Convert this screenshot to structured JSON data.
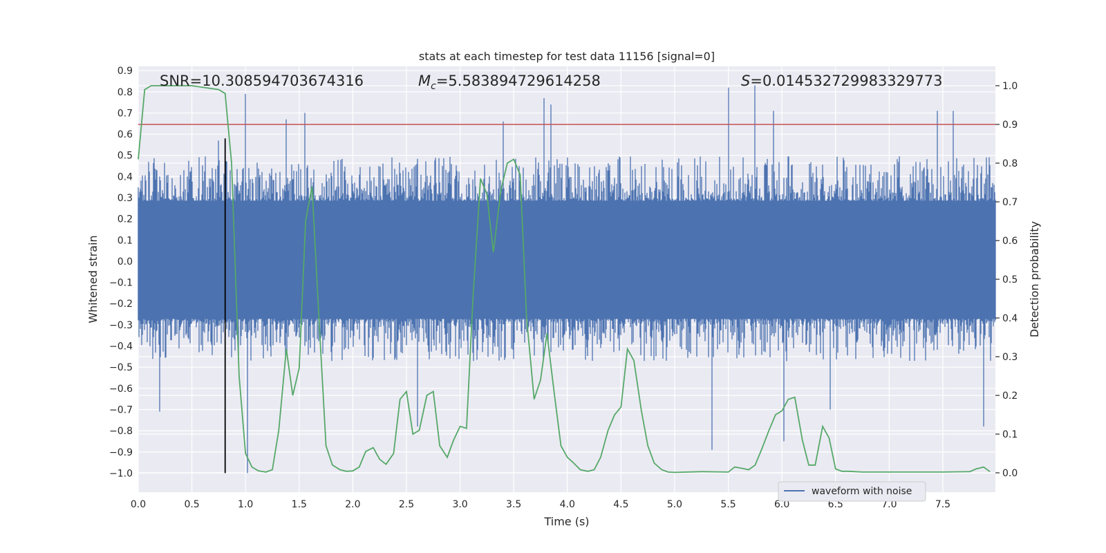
{
  "chart_data": {
    "type": "line",
    "title": "stats at each timestep for test data 11156 [signal=0]",
    "xlabel": "Time (s)",
    "ylabel_left": "Whitened strain",
    "ylabel_right": "Detection probability",
    "xlim": [
      0.0,
      7.99
    ],
    "ylim_left": [
      -1.09,
      0.92
    ],
    "ylim_right": [
      -0.05,
      1.05
    ],
    "x_ticks": [
      "0.0",
      "0.5",
      "1.0",
      "1.5",
      "2.0",
      "2.5",
      "3.0",
      "3.5",
      "4.0",
      "4.5",
      "5.0",
      "5.5",
      "6.0",
      "6.5",
      "7.0",
      "7.5"
    ],
    "y_left_ticks": [
      "0.9",
      "0.8",
      "0.7",
      "0.6",
      "0.5",
      "0.4",
      "0.3",
      "0.2",
      "0.1",
      "0.0",
      "−0.1",
      "−0.2",
      "−0.3",
      "−0.4",
      "−0.5",
      "−0.6",
      "−0.7",
      "−0.8",
      "−0.9",
      "−1.0"
    ],
    "y_right_ticks": [
      "1.0",
      "0.9",
      "0.8",
      "0.7",
      "0.6",
      "0.5",
      "0.4",
      "0.3",
      "0.2",
      "0.1",
      "0.0"
    ],
    "annotations": {
      "snr_label": "SNR=10.308594703674316",
      "mc_prefix": "M",
      "mc_subscript": "c",
      "mc_value": "=5.583894729614258",
      "s_prefix": "S",
      "s_value": "=0.014532729983329773"
    },
    "legend": {
      "entries": [
        "waveform with noise"
      ],
      "position": "lower-right"
    },
    "threshold": {
      "value": 0.9,
      "color": "#c44e52"
    },
    "event_marker": {
      "x": 0.81,
      "y_top": 0.58,
      "y_bottom": -1.0
    },
    "waveform": {
      "name": "waveform with noise",
      "color": "#4c72b0",
      "t_start": 0.0,
      "t_end": 7.99,
      "envelope_upper": 0.42,
      "envelope_lower": -0.4,
      "spikes": [
        {
          "t": 0.2,
          "v": -0.71
        },
        {
          "t": 0.75,
          "v": 0.57
        },
        {
          "t": 1.0,
          "v": 0.79
        },
        {
          "t": 1.02,
          "v": -1.0
        },
        {
          "t": 1.38,
          "v": 0.67
        },
        {
          "t": 1.55,
          "v": 0.7
        },
        {
          "t": 2.6,
          "v": -0.78
        },
        {
          "t": 3.4,
          "v": 0.66
        },
        {
          "t": 3.78,
          "v": 0.77
        },
        {
          "t": 3.85,
          "v": 0.74
        },
        {
          "t": 5.35,
          "v": -0.89
        },
        {
          "t": 5.5,
          "v": 0.82
        },
        {
          "t": 5.75,
          "v": 0.83
        },
        {
          "t": 5.92,
          "v": 0.71
        },
        {
          "t": 6.02,
          "v": -0.85
        },
        {
          "t": 6.45,
          "v": -0.7
        },
        {
          "t": 7.45,
          "v": 0.71
        },
        {
          "t": 7.6,
          "v": 0.71
        },
        {
          "t": 7.88,
          "v": -0.78
        }
      ]
    },
    "probability": {
      "name": "detection probability",
      "color": "#55a868",
      "x": [
        0.0,
        0.06,
        0.12,
        0.25,
        0.5,
        0.75,
        0.81,
        0.87,
        0.94,
        1.0,
        1.06,
        1.12,
        1.19,
        1.25,
        1.31,
        1.38,
        1.44,
        1.5,
        1.56,
        1.62,
        1.69,
        1.75,
        1.81,
        1.88,
        1.94,
        2.0,
        2.06,
        2.12,
        2.19,
        2.25,
        2.31,
        2.38,
        2.44,
        2.5,
        2.56,
        2.62,
        2.69,
        2.75,
        2.81,
        2.88,
        2.94,
        3.0,
        3.06,
        3.12,
        3.19,
        3.25,
        3.31,
        3.38,
        3.44,
        3.5,
        3.56,
        3.62,
        3.69,
        3.75,
        3.81,
        3.88,
        3.94,
        4.0,
        4.06,
        4.12,
        4.19,
        4.25,
        4.31,
        4.38,
        4.44,
        4.5,
        4.56,
        4.62,
        4.69,
        4.75,
        4.81,
        4.88,
        4.94,
        5.0,
        5.25,
        5.5,
        5.56,
        5.62,
        5.69,
        5.75,
        5.81,
        5.88,
        5.94,
        6.0,
        6.06,
        6.12,
        6.19,
        6.25,
        6.31,
        6.38,
        6.44,
        6.5,
        6.56,
        6.62,
        6.75,
        7.0,
        7.25,
        7.5,
        7.75,
        7.81,
        7.88,
        7.94
      ],
      "y": [
        0.81,
        0.99,
        1.0,
        1.0,
        1.0,
        0.99,
        0.98,
        0.8,
        0.25,
        0.05,
        0.015,
        0.005,
        0.002,
        0.008,
        0.11,
        0.32,
        0.2,
        0.27,
        0.65,
        0.74,
        0.37,
        0.07,
        0.02,
        0.008,
        0.004,
        0.005,
        0.015,
        0.055,
        0.065,
        0.035,
        0.022,
        0.05,
        0.19,
        0.21,
        0.1,
        0.11,
        0.2,
        0.21,
        0.07,
        0.04,
        0.085,
        0.12,
        0.115,
        0.45,
        0.76,
        0.72,
        0.57,
        0.73,
        0.8,
        0.81,
        0.77,
        0.4,
        0.19,
        0.24,
        0.36,
        0.2,
        0.07,
        0.04,
        0.025,
        0.008,
        0.004,
        0.008,
        0.04,
        0.11,
        0.15,
        0.17,
        0.32,
        0.29,
        0.16,
        0.07,
        0.025,
        0.008,
        0.002,
        0.001,
        0.003,
        0.002,
        0.015,
        0.012,
        0.008,
        0.02,
        0.06,
        0.11,
        0.15,
        0.16,
        0.19,
        0.195,
        0.085,
        0.02,
        0.02,
        0.12,
        0.09,
        0.01,
        0.004,
        0.004,
        0.002,
        0.002,
        0.002,
        0.002,
        0.003,
        0.01,
        0.015,
        0.003
      ]
    }
  }
}
